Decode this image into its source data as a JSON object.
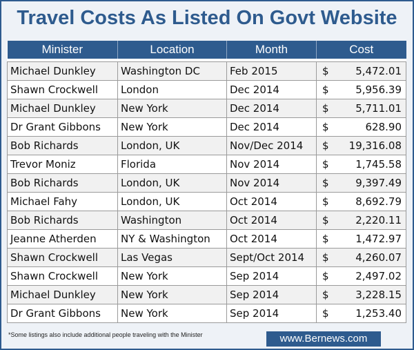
{
  "title": "Travel Costs As Listed On Govt Website",
  "table": {
    "headers": [
      "Minister",
      "Location",
      "Month",
      "Cost"
    ],
    "currency_symbol": "$",
    "rows": [
      {
        "minister": "Michael Dunkley",
        "location": "Washington DC",
        "month": "Feb 2015",
        "cost": "5,472.01"
      },
      {
        "minister": "Shawn Crockwell",
        "location": "London",
        "month": "Dec 2014",
        "cost": "5,956.39"
      },
      {
        "minister": "Michael Dunkley",
        "location": "New York",
        "month": "Dec 2014",
        "cost": "5,711.01"
      },
      {
        "minister": "Dr Grant Gibbons",
        "location": "New York",
        "month": "Dec 2014",
        "cost": "628.90"
      },
      {
        "minister": "Bob Richards",
        "location": "London, UK",
        "month": "Nov/Dec 2014",
        "cost": "19,316.08"
      },
      {
        "minister": "Trevor Moniz",
        "location": "Florida",
        "month": "Nov 2014",
        "cost": "1,745.58"
      },
      {
        "minister": "Bob Richards",
        "location": "London, UK",
        "month": "Nov 2014",
        "cost": "9,397.49"
      },
      {
        "minister": "Michael Fahy",
        "location": "London, UK",
        "month": "Oct 2014",
        "cost": "8,692.79"
      },
      {
        "minister": "Bob Richards",
        "location": "Washington",
        "month": "Oct 2014",
        "cost": "2,220.11"
      },
      {
        "minister": "Jeanne Atherden",
        "location": "NY & Washington",
        "month": "Oct 2014",
        "cost": "1,472.97"
      },
      {
        "minister": "Shawn Crockwell",
        "location": "Las Vegas",
        "month": "Sept/Oct 2014",
        "cost": "4,260.07"
      },
      {
        "minister": "Shawn Crockwell",
        "location": "New York",
        "month": "Sep 2014",
        "cost": "2,497.02"
      },
      {
        "minister": "Michael Dunkley",
        "location": "New York",
        "month": "Sep 2014",
        "cost": "3,228.15"
      },
      {
        "minister": "Dr Grant Gibbons",
        "location": "New York",
        "month": "Sep 2014",
        "cost": "1,253.40"
      }
    ]
  },
  "footnote": "*Some listings also include additional people traveling with the Minister",
  "site_label": "www.Bernews.com",
  "colors": {
    "brand_blue": "#2e5b8e",
    "frame_bg": "#eef2f7"
  }
}
